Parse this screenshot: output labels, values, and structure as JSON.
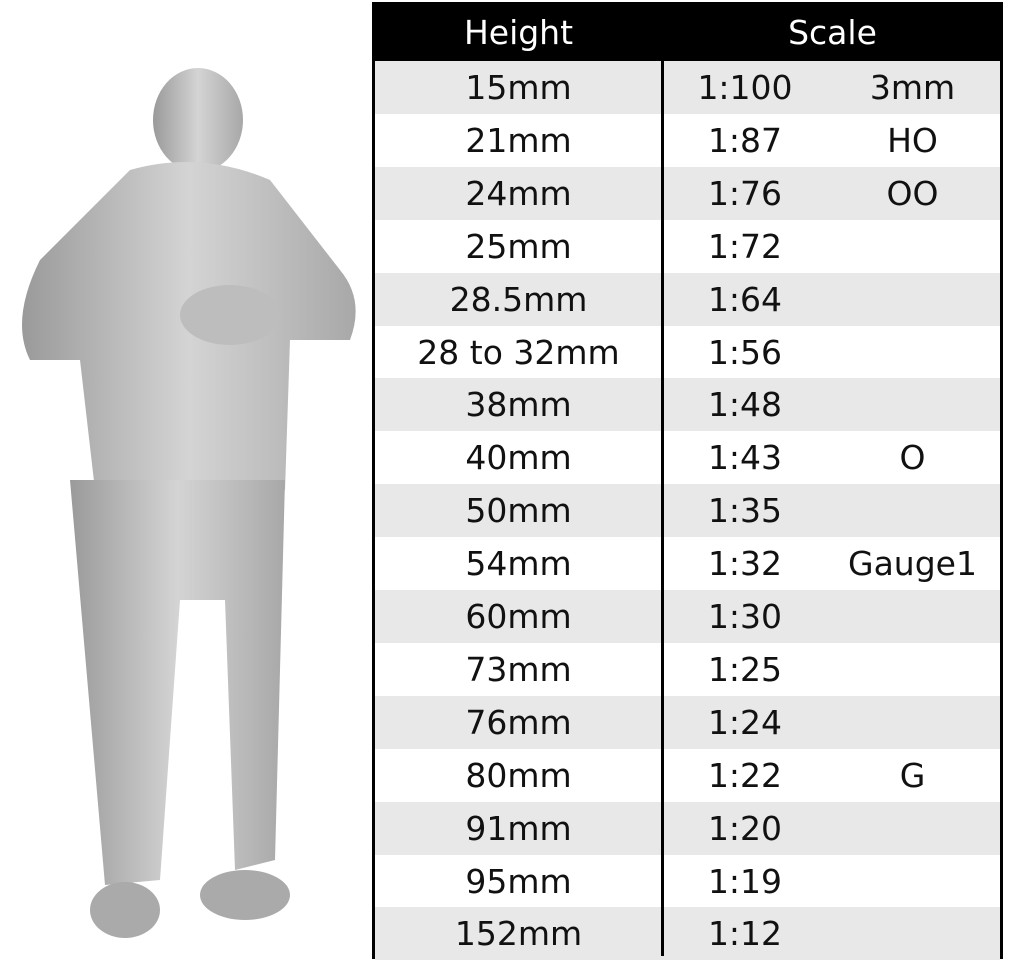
{
  "figure": {
    "description_icon": "3d-scanned-man-checking-watch"
  },
  "table": {
    "headers": {
      "height": "Height",
      "scale": "Scale"
    },
    "rows": [
      {
        "height": "15mm",
        "ratio": "1:100",
        "gauge": "3mm"
      },
      {
        "height": "21mm",
        "ratio": "1:87",
        "gauge": "HO"
      },
      {
        "height": "24mm",
        "ratio": "1:76",
        "gauge": "OO"
      },
      {
        "height": "25mm",
        "ratio": "1:72",
        "gauge": ""
      },
      {
        "height": "28.5mm",
        "ratio": "1:64",
        "gauge": ""
      },
      {
        "height": "28 to 32mm",
        "ratio": "1:56",
        "gauge": ""
      },
      {
        "height": "38mm",
        "ratio": "1:48",
        "gauge": ""
      },
      {
        "height": "40mm",
        "ratio": "1:43",
        "gauge": "O"
      },
      {
        "height": "50mm",
        "ratio": "1:35",
        "gauge": ""
      },
      {
        "height": "54mm",
        "ratio": "1:32",
        "gauge": "Gauge1"
      },
      {
        "height": "60mm",
        "ratio": "1:30",
        "gauge": ""
      },
      {
        "height": "73mm",
        "ratio": "1:25",
        "gauge": ""
      },
      {
        "height": "76mm",
        "ratio": "1:24",
        "gauge": ""
      },
      {
        "height": "80mm",
        "ratio": "1:22",
        "gauge": "G"
      },
      {
        "height": "91mm",
        "ratio": "1:20",
        "gauge": ""
      },
      {
        "height": "95mm",
        "ratio": "1:19",
        "gauge": ""
      },
      {
        "height": "152mm",
        "ratio": "1:12",
        "gauge": ""
      }
    ]
  }
}
